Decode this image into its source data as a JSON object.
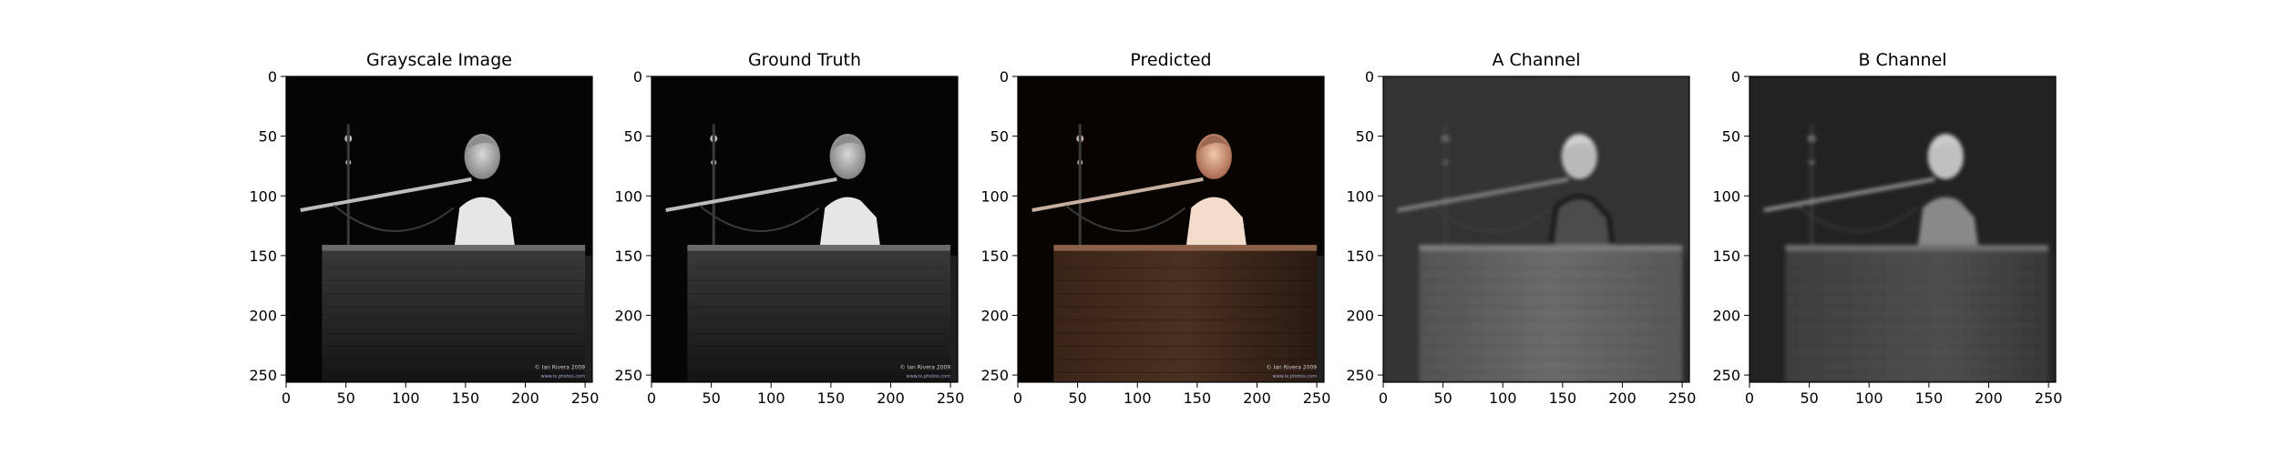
{
  "figure": {
    "panels": [
      {
        "title": "Grayscale Image",
        "mode": "gray"
      },
      {
        "title": "Ground Truth",
        "mode": "truth"
      },
      {
        "title": "Predicted",
        "mode": "pred"
      },
      {
        "title": "A Channel",
        "mode": "a"
      },
      {
        "title": "B Channel",
        "mode": "b"
      }
    ],
    "x_ticks": [
      "0",
      "50",
      "100",
      "150",
      "200",
      "250"
    ],
    "y_ticks": [
      "0",
      "50",
      "100",
      "150",
      "200",
      "250"
    ],
    "image_extent": [
      0,
      256
    ],
    "watermark_line1": "© Ian Rivera 2009",
    "watermark_line2": "www.ix.photos.com"
  }
}
